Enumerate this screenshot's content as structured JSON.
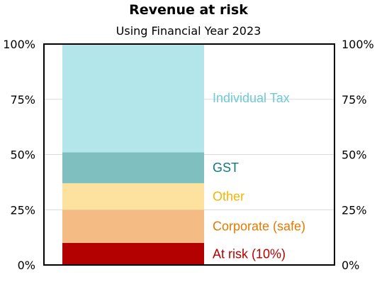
{
  "chart_data": {
    "type": "bar",
    "title": "Revenue at risk",
    "subtitle": "Using Financial Year 2023",
    "ylim": [
      0,
      100
    ],
    "yticks": [
      "0%",
      "25%",
      "50%",
      "75%",
      "100%"
    ],
    "grid": true,
    "stacked": true,
    "series": [
      {
        "name": "At risk (10%)",
        "value": 10,
        "color": "#b30000",
        "label_color": "#b30000"
      },
      {
        "name": "Corporate (safe)",
        "value": 15,
        "color": "#f4bb84",
        "label_color": "#e07b00"
      },
      {
        "name": "Other",
        "value": 12,
        "color": "#fde19f",
        "label_color": "#f5b400"
      },
      {
        "name": "GST",
        "value": 14,
        "color": "#80bfc0",
        "label_color": "#0e7a80"
      },
      {
        "name": "Individual Tax",
        "value": 49,
        "color": "#b3e6ea",
        "label_color": "#6fcad6"
      }
    ]
  }
}
